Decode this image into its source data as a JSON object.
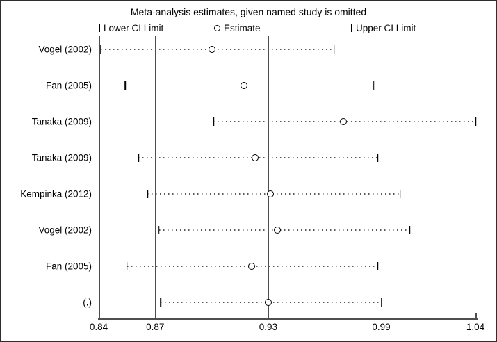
{
  "chart_data": {
    "type": "scatter",
    "subtype": "leave-one-out-sensitivity-forest-plot",
    "title": "Meta-analysis estimates, given named study is omitted",
    "legend": [
      {
        "symbol": "lower-ci-bar",
        "label": "Lower CI Limit"
      },
      {
        "symbol": "estimate-circle",
        "label": "Estimate"
      },
      {
        "symbol": "upper-ci-bar",
        "label": "Upper CI Limit"
      }
    ],
    "xlim": [
      0.84,
      1.04
    ],
    "x_ticks": [
      0.84,
      0.87,
      0.93,
      0.99,
      1.04
    ],
    "reference_lines": [
      0.87,
      0.93,
      0.99
    ],
    "grid": "off",
    "legend_position": "top",
    "rows": [
      {
        "label": "Vogel (2002)",
        "lower": 0.841,
        "estimate": 0.9,
        "upper": 0.965,
        "dotted_line": true
      },
      {
        "label": "Fan (2005)",
        "lower": 0.854,
        "estimate": 0.917,
        "upper": 0.986,
        "dotted_line": false
      },
      {
        "label": "Tanaka (2009)",
        "lower": 0.901,
        "estimate": 0.97,
        "upper": 1.04,
        "dotted_line": true
      },
      {
        "label": "Tanaka (2009)",
        "lower": 0.861,
        "estimate": 0.923,
        "upper": 0.988,
        "dotted_line": true
      },
      {
        "label": "Kempinka (2012)",
        "lower": 0.866,
        "estimate": 0.931,
        "upper": 1.0,
        "dotted_line": true
      },
      {
        "label": "Vogel (2002)",
        "lower": 0.872,
        "estimate": 0.935,
        "upper": 1.005,
        "dotted_line": true
      },
      {
        "label": "Fan (2005)",
        "lower": 0.855,
        "estimate": 0.921,
        "upper": 0.988,
        "dotted_line": true
      },
      {
        "label": "(.)",
        "lower": 0.873,
        "estimate": 0.93,
        "upper": 0.99,
        "dotted_line": true
      }
    ],
    "colors": {
      "background": "#ffffff",
      "axis": "#4f4f4f",
      "reference_line": "#4f4f4f",
      "marker": "#000000",
      "dotted_line": "#5a5a5a",
      "text": "#000000"
    }
  }
}
